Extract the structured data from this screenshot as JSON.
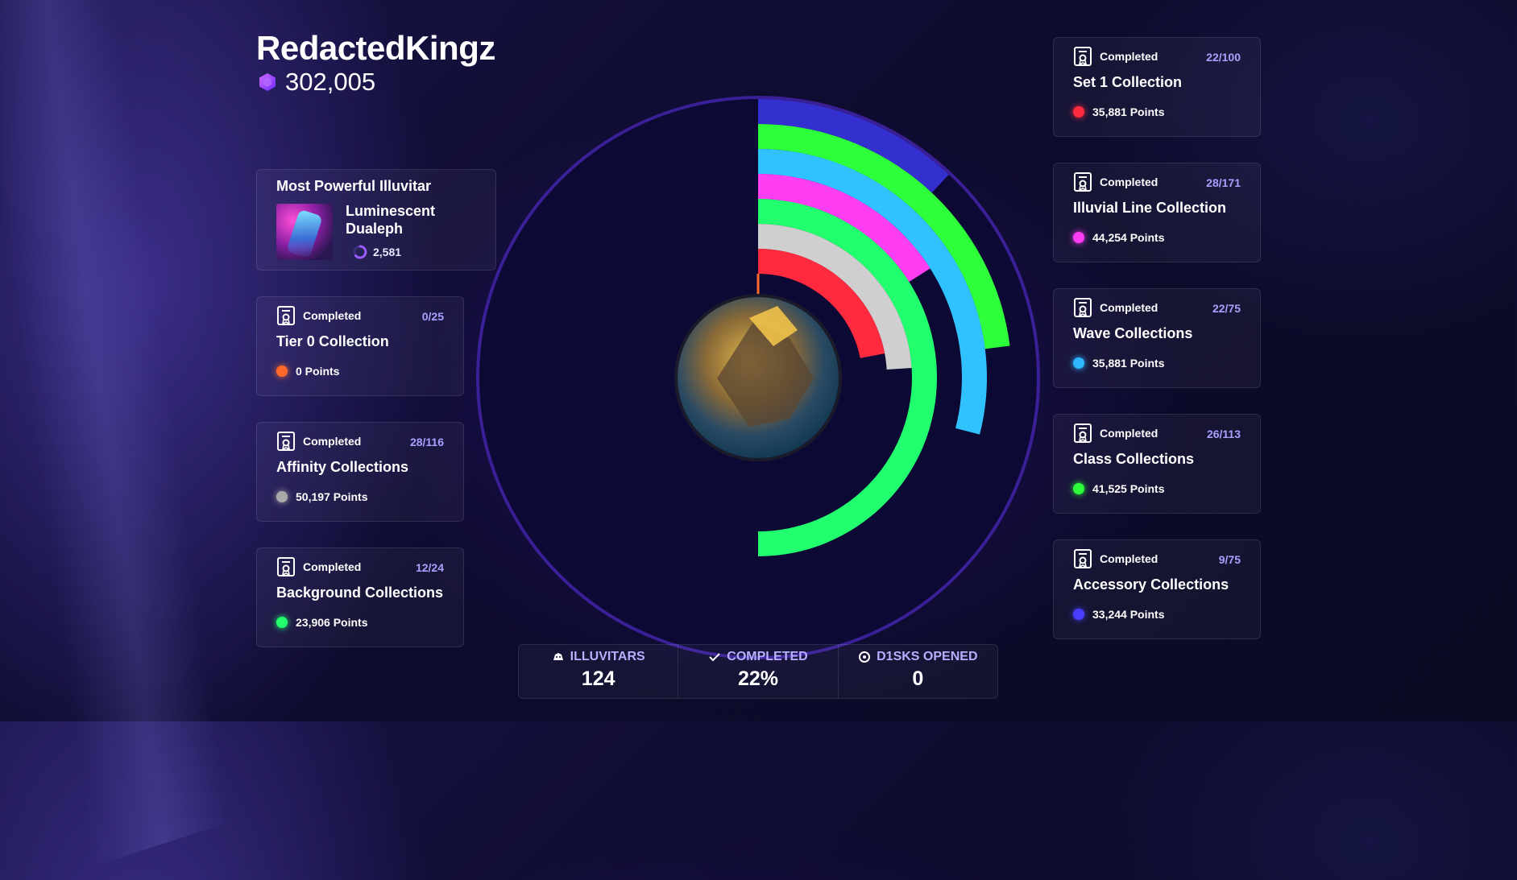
{
  "profile": {
    "username": "RedactedKingz",
    "balance": "302,005"
  },
  "powerful": {
    "title": "Most Powerful Illuvitar",
    "name": "Luminescent Dualeph",
    "power": "2,581"
  },
  "left_collections": [
    {
      "status": "Completed",
      "count": "0/25",
      "title": "Tier 0 Collection",
      "points": "0 Points",
      "color": "#ff6a2a"
    },
    {
      "status": "Completed",
      "count": "28/116",
      "title": "Affinity Collections",
      "points": "50,197 Points",
      "color": "#a9a9a9"
    },
    {
      "status": "Completed",
      "count": "12/24",
      "title": "Background Collections",
      "points": "23,906 Points",
      "color": "#22ff6e"
    }
  ],
  "right_collections": [
    {
      "status": "Completed",
      "count": "22/100",
      "title": "Set 1 Collection",
      "points": "35,881 Points",
      "color": "#ff2a3d"
    },
    {
      "status": "Completed",
      "count": "28/171",
      "title": "Illuvial Line Collection",
      "points": "44,254 Points",
      "color": "#ff3df2"
    },
    {
      "status": "Completed",
      "count": "22/75",
      "title": "Wave Collections",
      "points": "35,881 Points",
      "color": "#2fb6ff"
    },
    {
      "status": "Completed",
      "count": "26/113",
      "title": "Class Collections",
      "points": "41,525 Points",
      "color": "#2dff3a"
    },
    {
      "status": "Completed",
      "count": "9/75",
      "title": "Accessory Collections",
      "points": "33,244 Points",
      "color": "#4a3dff"
    }
  ],
  "stats": [
    {
      "label": "ILLUVITARS",
      "value": "124",
      "icon": "illuvitar-icon"
    },
    {
      "label": "COMPLETED",
      "value": "22%",
      "icon": "check-icon"
    },
    {
      "label": "D1SKS OPENED",
      "value": "0",
      "icon": "disk-icon"
    }
  ],
  "chart_data": {
    "type": "radial-bar",
    "unit": "fraction of collection completed",
    "series": [
      {
        "name": "Accessory Collections",
        "value": 0.12,
        "color": "#3430cf"
      },
      {
        "name": "Class Collections",
        "value": 0.23,
        "color": "#2dff3a"
      },
      {
        "name": "Wave Collections",
        "value": 0.29,
        "color": "#2fc2ff"
      },
      {
        "name": "Illuvial Line Collection",
        "value": 0.16,
        "color": "#ff3df2"
      },
      {
        "name": "Background Collections",
        "value": 0.5,
        "color": "#22ff6e"
      },
      {
        "name": "Affinity Collections",
        "value": 0.24,
        "color": "#cfcfcf"
      },
      {
        "name": "Set 1 Collection",
        "value": 0.22,
        "color": "#ff2a3d"
      },
      {
        "name": "Tier 0 Collection",
        "value": 0.0,
        "color": "#ff6a2a"
      }
    ]
  }
}
